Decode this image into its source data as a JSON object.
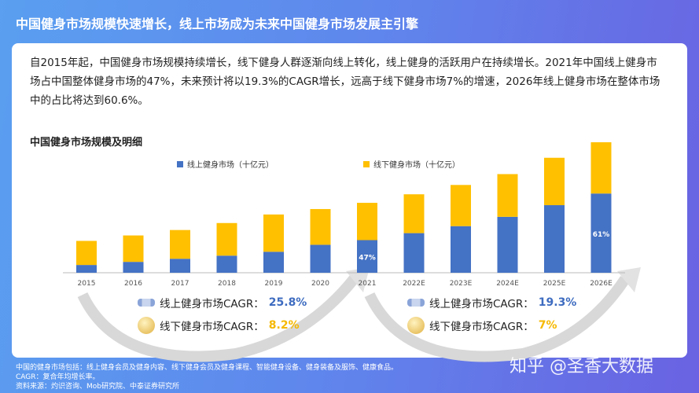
{
  "header": {
    "title": "中国健身市场规模快速增长，线上市场成为未来中国健身市场发展主引擎"
  },
  "intro": "自2015年起，中国健身市场规模持续增长，线下健身人群逐渐向线上转化，线上健身的活跃用户在持续增长。2021年中国线上健身市场占中国整体健身市场的47%，未来预计将以19.3%的CAGR增长，远高于线下健身市场7%的增速，2026年线上健身市场在整体市场中的占比将达到60.6%。",
  "chart_data": {
    "type": "bar",
    "stacked": true,
    "title": "中国健身市场规模及明细",
    "categories": [
      "2015",
      "2016",
      "2017",
      "2018",
      "2019",
      "2020",
      "2021",
      "2022E",
      "2023E",
      "2024E",
      "2025E",
      "2026E"
    ],
    "series": [
      {
        "name": "线上健身市场（十亿元）",
        "color": "#4472c4",
        "values": [
          10,
          14,
          18,
          22,
          27,
          36,
          42,
          51,
          60,
          72,
          87,
          102
        ]
      },
      {
        "name": "线下健身市场（十亿元）",
        "color": "#ffc000",
        "values": [
          31,
          34,
          37,
          42,
          48,
          46,
          48,
          50,
          53,
          55,
          61,
          66
        ]
      }
    ],
    "annotations": [
      {
        "category": "2021",
        "label": "47%"
      },
      {
        "category": "2026E",
        "label": "61%"
      }
    ],
    "ylim": [
      0,
      170
    ],
    "legend": "top",
    "grid": false
  },
  "cagr": {
    "left": {
      "online_label": "线上健身市场CAGR：",
      "online_value": "25.8%",
      "offline_label": "线下健身市场CAGR：",
      "offline_value": "8.2%"
    },
    "right": {
      "online_label": "线上健身市场CAGR：",
      "online_value": "19.3%",
      "offline_label": "线下健身市场CAGR：",
      "offline_value": "7%"
    }
  },
  "footnotes": [
    "中国的健身市场包括：线上健身会员及健身内容、线下健身会员及健身课程、智能健身设备、健身装备及服饰、健康食品。",
    "CAGR：复合年均增长率。",
    "资料来源：灼识咨询、Mob研究院、中泰证券研究所"
  ],
  "watermark": "知乎 @圣香大数据"
}
